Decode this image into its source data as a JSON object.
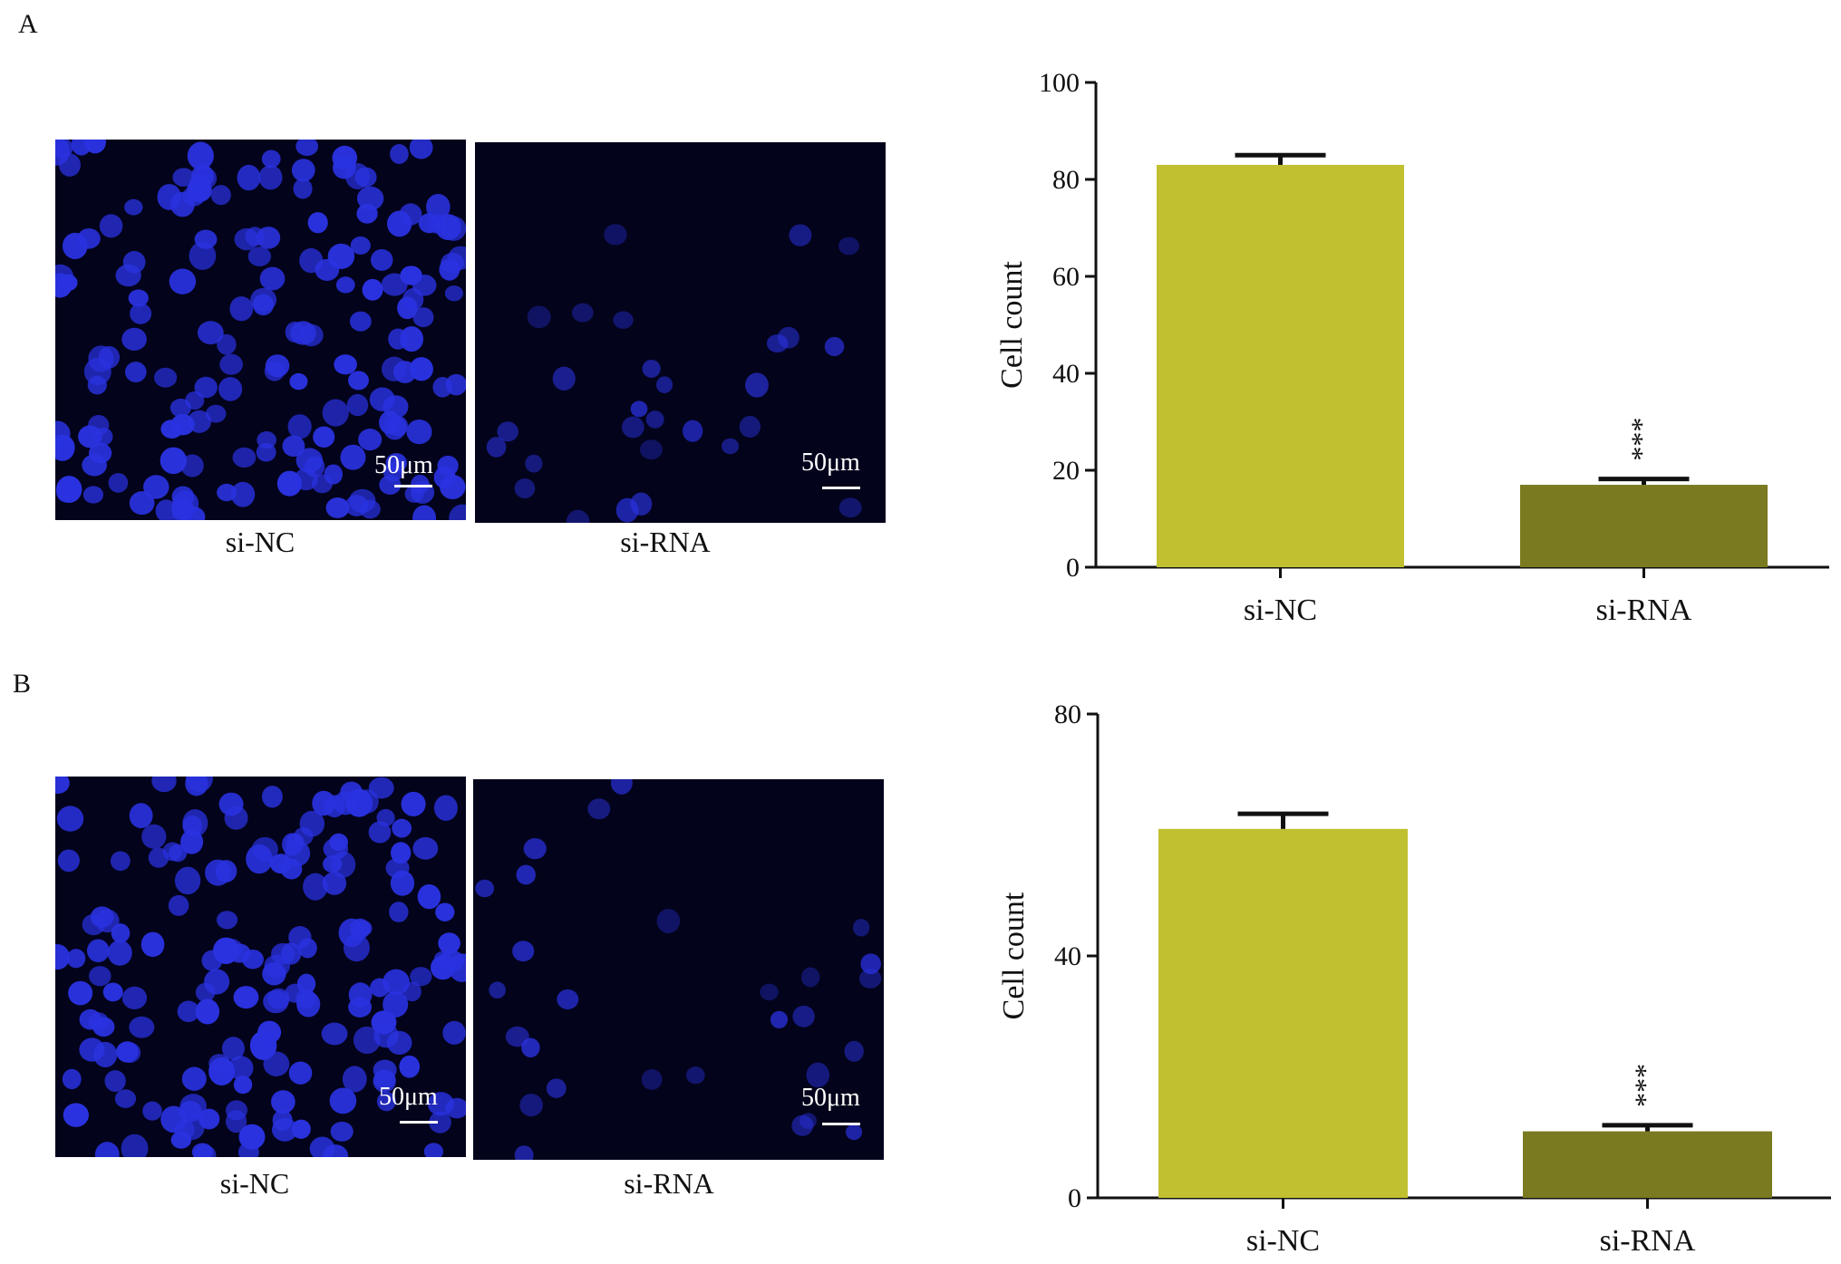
{
  "panels": [
    {
      "label": "A",
      "images": [
        {
          "caption": "si-NC",
          "scale": "50μm",
          "density": "high"
        },
        {
          "caption": "si-RNA",
          "scale": "50μm",
          "density": "low"
        }
      ]
    },
    {
      "label": "B",
      "images": [
        {
          "caption": "si-NC",
          "scale": "50μm",
          "density": "high"
        },
        {
          "caption": "si-RNA",
          "scale": "50μm",
          "density": "low"
        }
      ]
    }
  ],
  "colors": {
    "si_NC_bar": "#c0c030",
    "si_RNA_bar": "#7a7a20",
    "nuclei": "#2a32e0",
    "background": "#03031c"
  },
  "chart_data": [
    {
      "type": "bar",
      "panel": "A",
      "categories": [
        "si-NC",
        "si-RNA"
      ],
      "values": [
        83,
        17
      ],
      "errors": [
        2,
        1.2
      ],
      "significance": [
        "",
        "***"
      ],
      "ylabel": "Cell count",
      "xlabel": "",
      "ylim": [
        0,
        100
      ],
      "yticks": [
        "0",
        "20",
        "40",
        "60",
        "80",
        "100"
      ],
      "ytick_values": [
        0,
        20,
        40,
        60,
        80,
        100
      ]
    },
    {
      "type": "bar",
      "panel": "B",
      "categories": [
        "si-NC",
        "si-RNA"
      ],
      "values": [
        61,
        11
      ],
      "errors": [
        2.5,
        1
      ],
      "significance": [
        "",
        "***"
      ],
      "ylabel": "Cell count",
      "xlabel": "",
      "ylim": [
        0,
        80
      ],
      "yticks": [
        "0",
        "40",
        "80"
      ],
      "ytick_values": [
        0,
        40,
        80
      ]
    }
  ]
}
